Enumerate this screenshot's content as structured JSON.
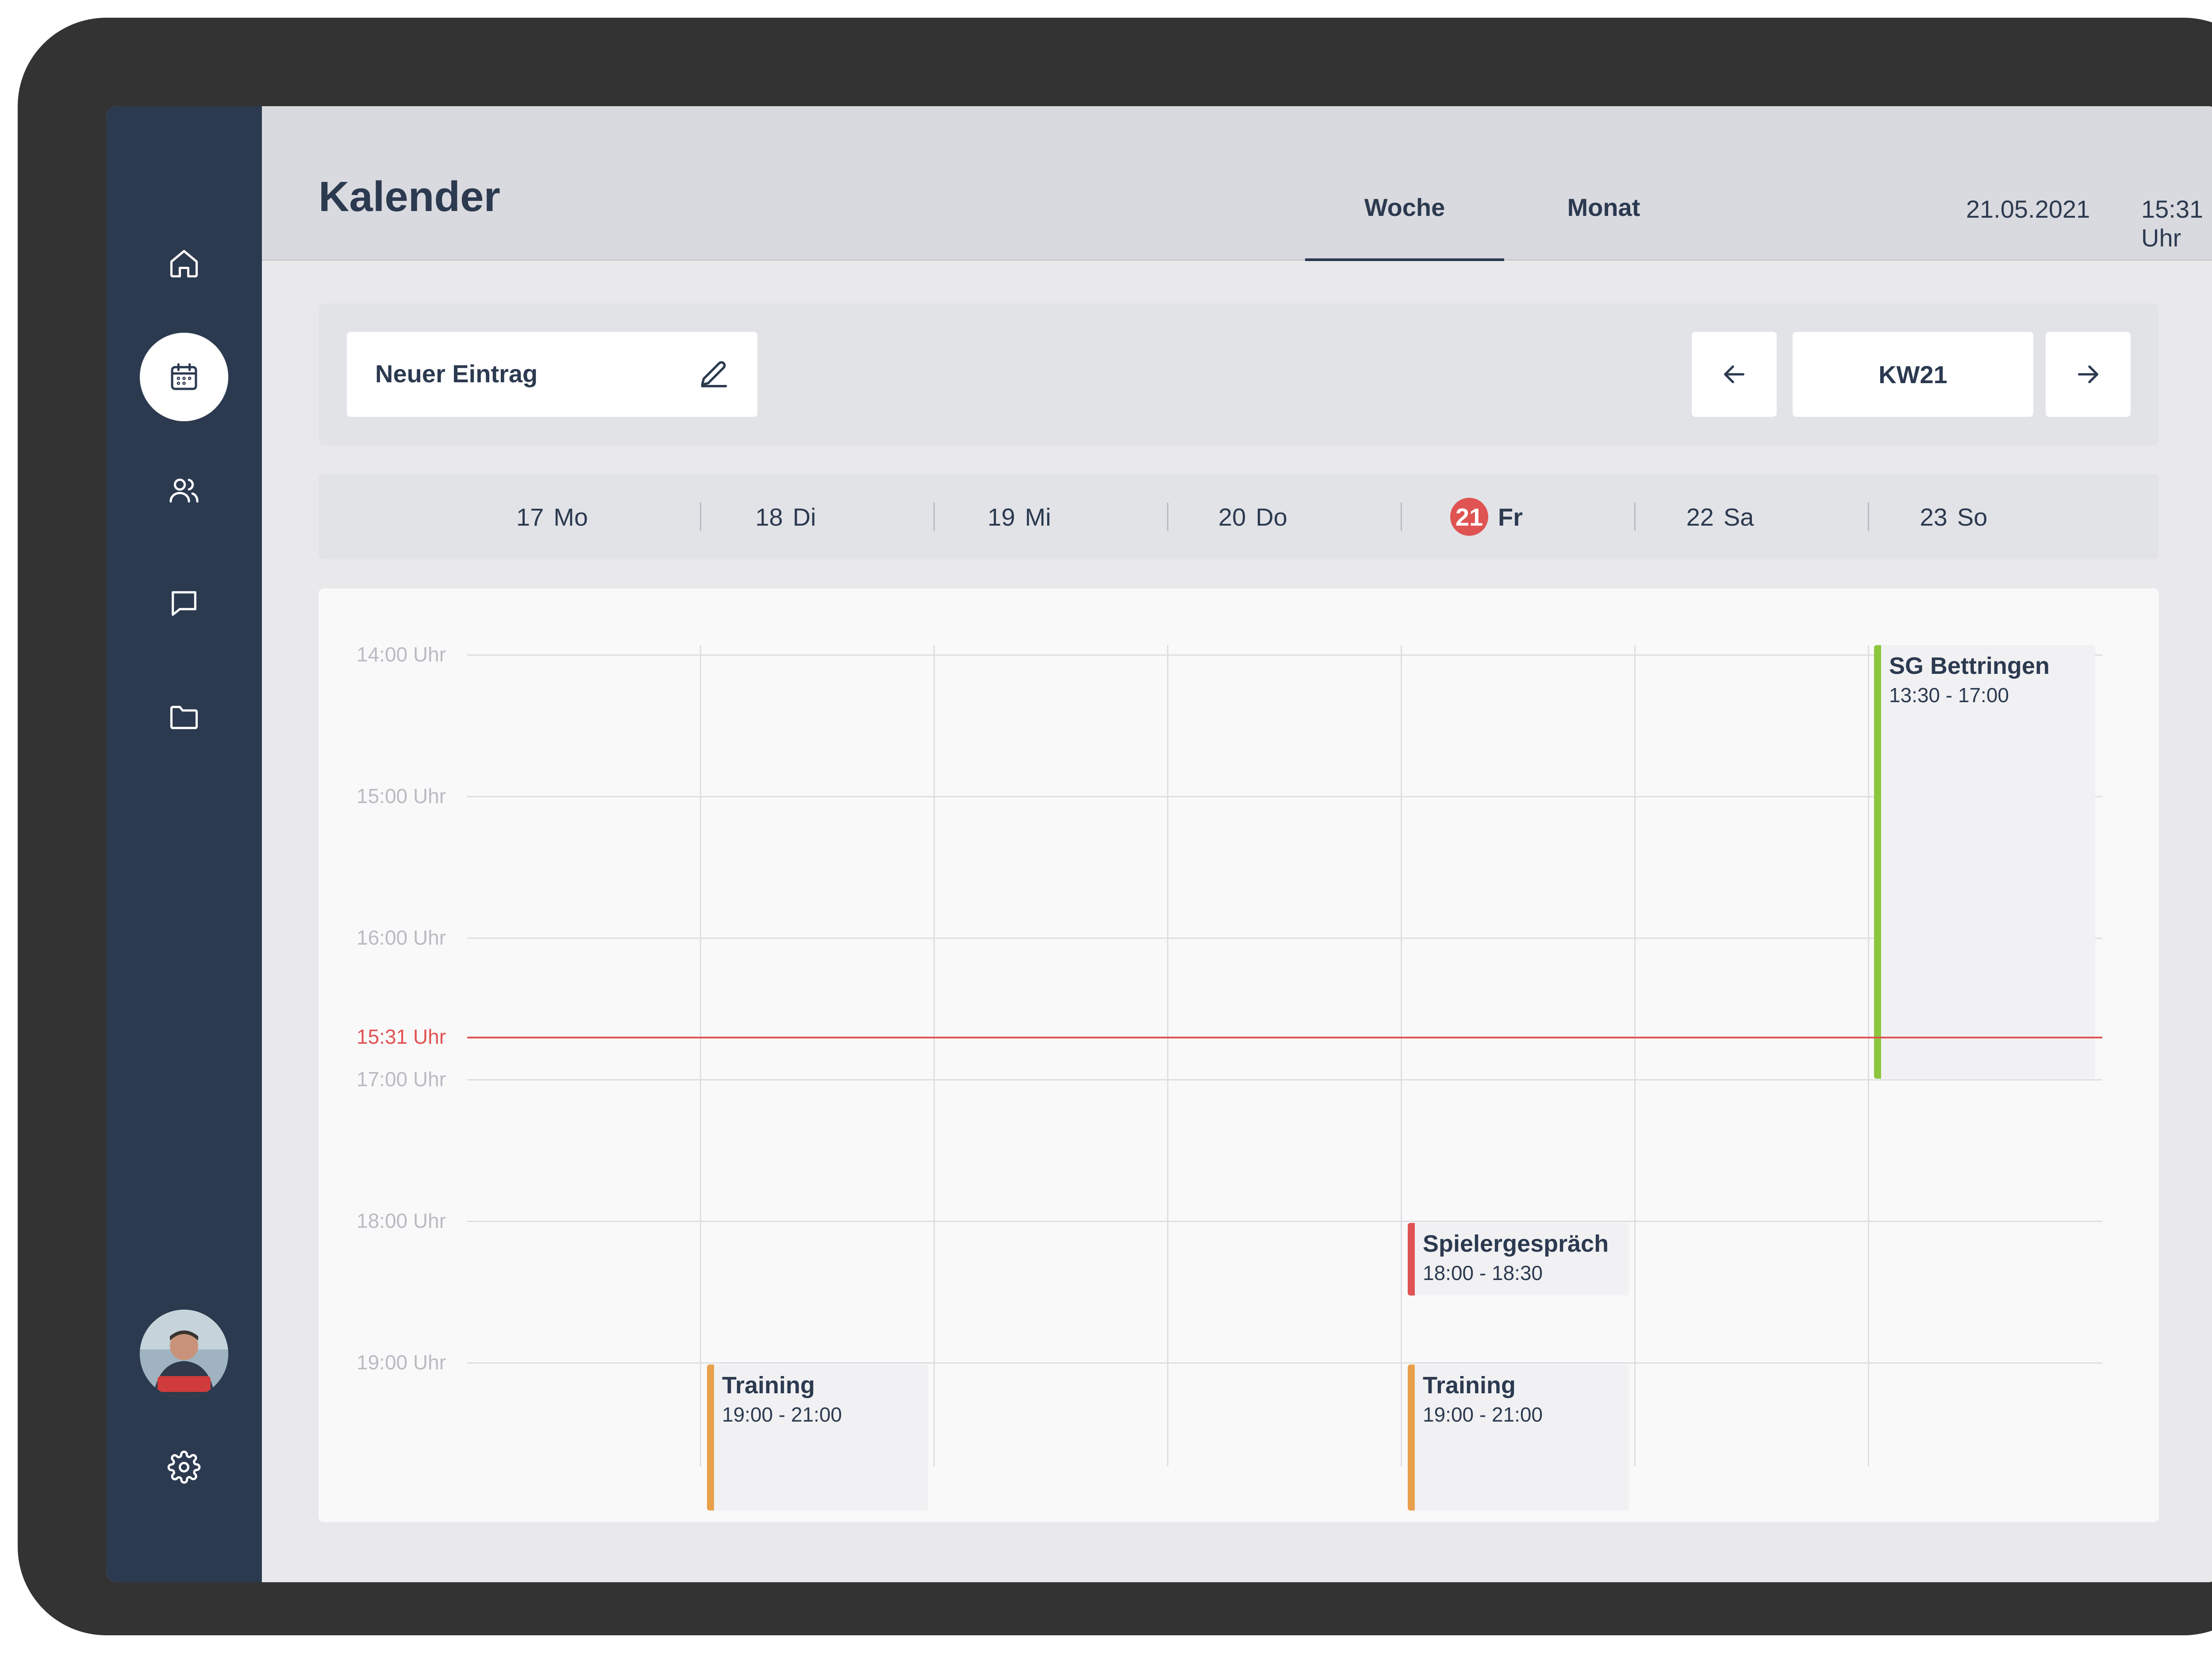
{
  "header": {
    "title": "Kalender",
    "tabs": [
      {
        "label": "Woche",
        "active": true
      },
      {
        "label": "Monat",
        "active": false
      }
    ],
    "date": "21.05.2021",
    "time": "15:31 Uhr"
  },
  "sidebar": {
    "items": [
      {
        "icon": "home-icon",
        "active": false
      },
      {
        "icon": "calendar-icon",
        "active": true
      },
      {
        "icon": "users-icon",
        "active": false
      },
      {
        "icon": "chat-icon",
        "active": false
      },
      {
        "icon": "folder-icon",
        "active": false
      }
    ],
    "bottom": [
      {
        "icon": "avatar"
      },
      {
        "icon": "gear-icon"
      }
    ]
  },
  "toolbar": {
    "new_entry_label": "Neuer Eintrag",
    "new_entry_icon": "pencil-icon",
    "prev_icon": "arrow-left-icon",
    "week_label": "KW21",
    "next_icon": "arrow-right-icon"
  },
  "days": [
    {
      "num": "17",
      "weekday": "Mo"
    },
    {
      "num": "18",
      "weekday": "Di"
    },
    {
      "num": "19",
      "weekday": "Mi"
    },
    {
      "num": "20",
      "weekday": "Do"
    },
    {
      "num": "21",
      "weekday": "Fr",
      "today": true
    },
    {
      "num": "22",
      "weekday": "Sa"
    },
    {
      "num": "23",
      "weekday": "So"
    }
  ],
  "hours": [
    "14:00 Uhr",
    "15:00 Uhr",
    "16:00 Uhr",
    "17:00 Uhr",
    "18:00 Uhr",
    "19:00 Uhr"
  ],
  "now_label": "15:31 Uhr",
  "events": [
    {
      "title": "SG Bettringen",
      "time": "13:30 - 17:00",
      "day": "So",
      "color": "#8cc63f"
    },
    {
      "title": "Spielergespräch",
      "time": "18:00 - 18:30",
      "day": "Fr",
      "color": "#e05353"
    },
    {
      "title": "Training",
      "time": "19:00 - 21:00",
      "day": "Di",
      "color": "#e8a04c"
    },
    {
      "title": "Training",
      "time": "19:00 - 21:00",
      "day": "Fr",
      "color": "#e8a04c"
    }
  ],
  "colors": {
    "sidebar": "#2c3a50",
    "accent_red": "#e05353",
    "event_green": "#8cc63f",
    "event_orange": "#e8a04c"
  }
}
